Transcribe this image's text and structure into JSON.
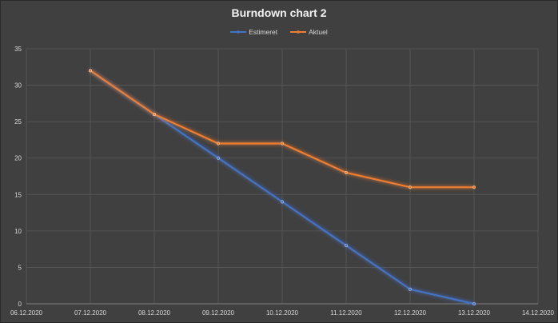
{
  "chart_data": {
    "type": "line",
    "title": "Burndown chart 2",
    "xlabel": "",
    "ylabel": "",
    "categories": [
      "06.12.2020",
      "07.12.2020",
      "08.12.2020",
      "09.12.2020",
      "10.12.2020",
      "11.12.2020",
      "12.12.2020",
      "13.12.2020",
      "14.12.2020"
    ],
    "ylim": [
      0,
      35
    ],
    "yticks": [
      0,
      5,
      10,
      15,
      20,
      25,
      30,
      35
    ],
    "grid": true,
    "legend_position": "top",
    "series": [
      {
        "name": "Estimeret",
        "color": "#4472c4",
        "x": [
          "07.12.2020",
          "08.12.2020",
          "09.12.2020",
          "10.12.2020",
          "11.12.2020",
          "12.12.2020",
          "13.12.2020"
        ],
        "values": [
          32,
          26,
          20,
          14,
          8,
          2,
          0
        ]
      },
      {
        "name": "Aktuel",
        "color": "#ed7d31",
        "x": [
          "07.12.2020",
          "08.12.2020",
          "09.12.2020",
          "10.12.2020",
          "11.12.2020",
          "12.12.2020",
          "13.12.2020"
        ],
        "values": [
          32,
          26,
          22,
          22,
          18,
          16,
          16
        ]
      }
    ]
  }
}
